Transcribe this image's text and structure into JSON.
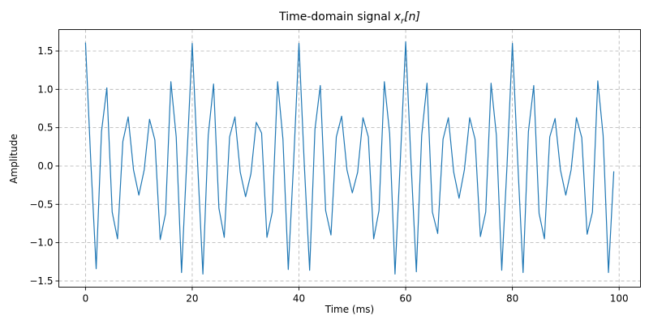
{
  "chart_data": {
    "type": "line",
    "title": "Time-domain signal",
    "title_math_base": "x",
    "title_math_sub": "r",
    "title_math_arg": "[n]",
    "xlabel": "Time (ms)",
    "ylabel": "Amplitude",
    "xlim": [
      -5,
      104
    ],
    "ylim": [
      -1.58,
      1.78
    ],
    "xticks": [
      0,
      20,
      40,
      60,
      80,
      100
    ],
    "xtick_labels": [
      "0",
      "20",
      "40",
      "60",
      "80",
      "100"
    ],
    "yticks": [
      -1.5,
      -1.0,
      -0.5,
      0.0,
      0.5,
      1.0,
      1.5
    ],
    "ytick_labels": [
      "−1.5",
      "−1.0",
      "−0.5",
      "0.0",
      "0.5",
      "1.0",
      "1.5"
    ],
    "grid": true,
    "line_color": "#1f77b4",
    "series": [
      {
        "values": [
          1.61,
          0.05,
          -1.34,
          0.45,
          1.02,
          -0.6,
          -0.95,
          0.32,
          0.64,
          -0.05,
          -0.38,
          -0.05,
          0.61,
          0.34,
          -0.96,
          -0.62,
          1.1,
          0.38,
          -1.39,
          0.1,
          1.6,
          0.05,
          -1.41,
          0.4,
          1.07,
          -0.55,
          -0.93,
          0.38,
          0.64,
          -0.08,
          -0.4,
          -0.1,
          0.57,
          0.43,
          -0.93,
          -0.6,
          1.1,
          0.35,
          -1.35,
          0.05,
          1.6,
          0.02,
          -1.36,
          0.48,
          1.05,
          -0.58,
          -0.9,
          0.38,
          0.65,
          -0.05,
          -0.35,
          -0.08,
          0.63,
          0.38,
          -0.95,
          -0.58,
          1.1,
          0.42,
          -1.41,
          0.08,
          1.62,
          0.05,
          -1.38,
          0.4,
          1.08,
          -0.6,
          -0.88,
          0.35,
          0.63,
          -0.08,
          -0.42,
          -0.05,
          0.63,
          0.35,
          -0.92,
          -0.6,
          1.08,
          0.4,
          -1.36,
          0.02,
          1.6,
          0.05,
          -1.39,
          0.45,
          1.05,
          -0.62,
          -0.95,
          0.38,
          0.62,
          -0.05,
          -0.38,
          -0.05,
          0.63,
          0.37,
          -0.89,
          -0.6,
          1.11,
          0.4,
          -1.39,
          -0.07
        ]
      }
    ]
  }
}
